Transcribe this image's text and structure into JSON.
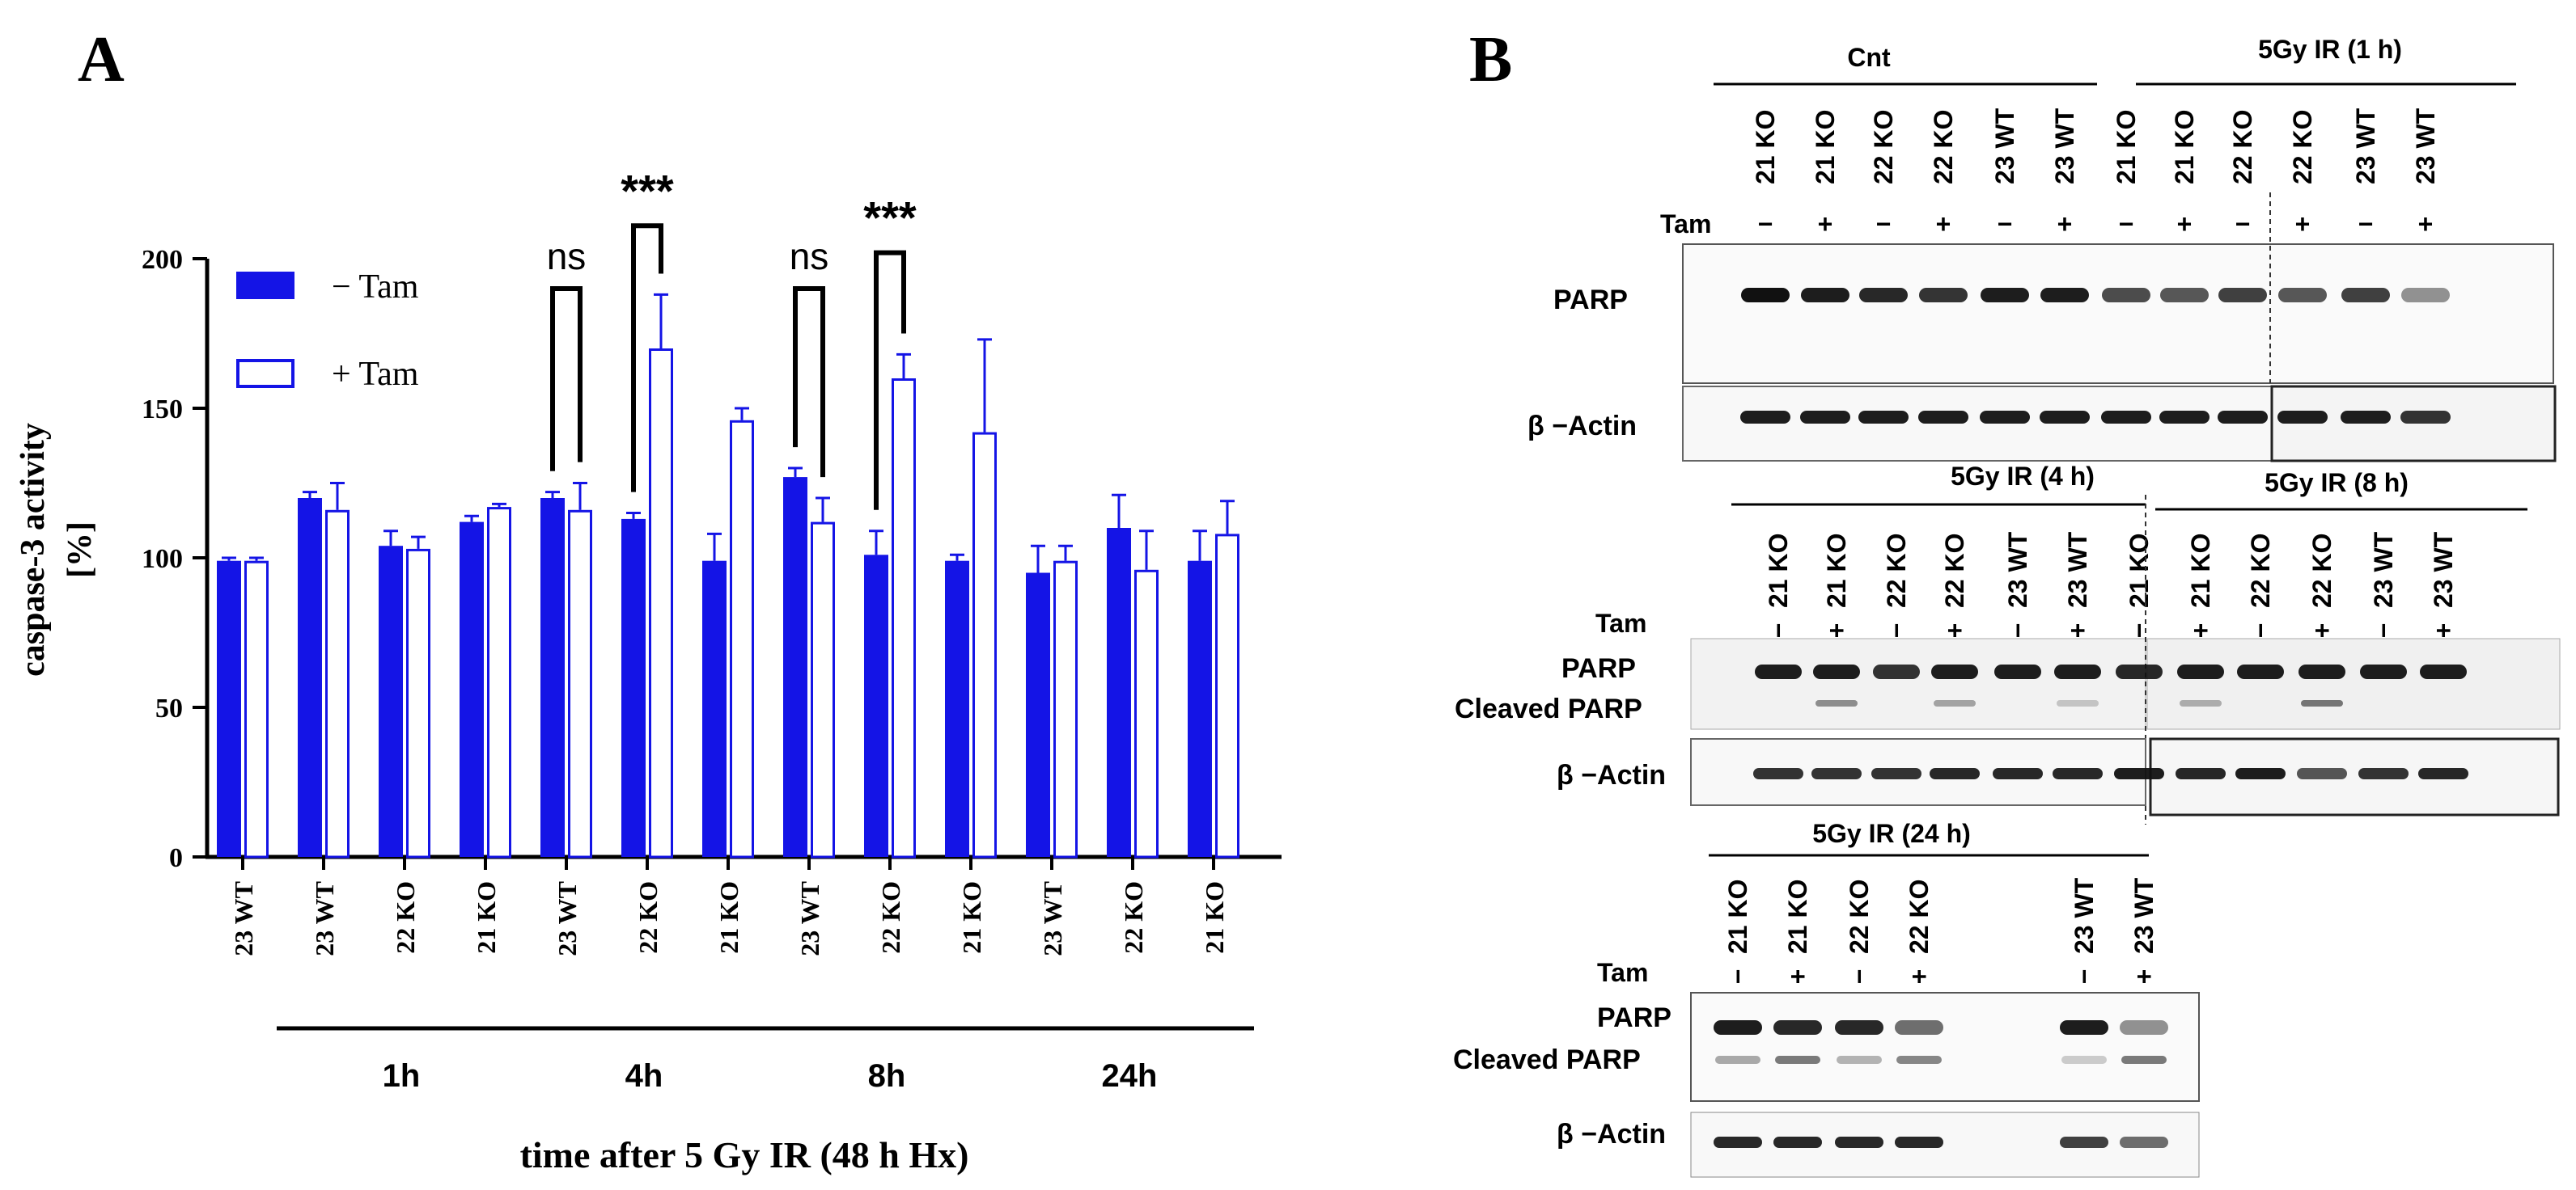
{
  "panel_a": {
    "label": "A",
    "chart_data": {
      "type": "bar",
      "ylabel_line1": "caspase-3 activity",
      "ylabel_line2": "[%]",
      "xlabel": "time after 5 Gy IR (48 h Hx)",
      "ylim": [
        0,
        200
      ],
      "yticks": [
        "0",
        "50",
        "100",
        "150",
        "200"
      ],
      "legend": [
        {
          "label": "− Tam",
          "fill": "solid"
        },
        {
          "label": "+ Tam",
          "fill": "open"
        }
      ],
      "categories": [
        "23 WT",
        "23 WT",
        "22 KO",
        "21 KO",
        "23 WT",
        "22 KO",
        "21 KO",
        "23 WT",
        "22 KO",
        "21 KO",
        "23 WT",
        "22 KO",
        "21 KO"
      ],
      "series": [
        {
          "name": "− Tam",
          "values": [
            99,
            120,
            104,
            112,
            120,
            113,
            99,
            127,
            101,
            99,
            95,
            110,
            99
          ],
          "errors": [
            1,
            2,
            5,
            2,
            2,
            2,
            9,
            3,
            8,
            2,
            9,
            11,
            10
          ]
        },
        {
          "name": "+ Tam",
          "values": [
            99,
            116,
            103,
            117,
            116,
            170,
            146,
            112,
            160,
            142,
            99,
            96,
            108
          ],
          "errors": [
            1,
            9,
            4,
            1,
            9,
            18,
            4,
            8,
            8,
            31,
            5,
            13,
            11
          ]
        }
      ],
      "groups": [
        {
          "label": "1h",
          "from": 1,
          "to": 3
        },
        {
          "label": "4h",
          "from": 4,
          "to": 6
        },
        {
          "label": "8h",
          "from": 7,
          "to": 9
        },
        {
          "label": "24h",
          "from": 10,
          "to": 12
        }
      ],
      "significance": [
        {
          "label": "ns",
          "from_index": 4,
          "from_series": 0,
          "to_index": 4,
          "to_series": 1,
          "level": 190
        },
        {
          "label": "***",
          "from_index": 5,
          "from_series": 0,
          "to_index": 5,
          "to_series": 1,
          "level": 211
        },
        {
          "label": "ns",
          "from_index": 7,
          "from_series": 0,
          "to_index": 7,
          "to_series": 1,
          "level": 190
        },
        {
          "label": "***",
          "from_index": 8,
          "from_series": 0,
          "to_index": 8,
          "to_series": 1,
          "level": 202
        }
      ],
      "color": "#1414e6"
    }
  },
  "panel_b": {
    "label": "B",
    "tam_label": "Tam",
    "parp_label": "PARP",
    "cleaved_label": "Cleaved PARP",
    "actin_label": "β −Actin",
    "blot1": {
      "header_cnt": "Cnt",
      "header_ir": "5Gy IR (1 h)",
      "lanes": [
        "21 KO",
        "21 KO",
        "22 KO",
        "22 KO",
        "23 WT",
        "23 WT",
        "21 KO",
        "21 KO",
        "22 KO",
        "22 KO",
        "23 WT",
        "23 WT"
      ],
      "tam": [
        "−",
        "+",
        "−",
        "+",
        "−",
        "+",
        "−",
        "+",
        "−",
        "+",
        "−",
        "+"
      ]
    },
    "blot2": {
      "header_a": "5Gy IR (4 h)",
      "header_b": "5Gy IR (8 h)",
      "lanes": [
        "21 KO",
        "21 KO",
        "22 KO",
        "22 KO",
        "23 WT",
        "23 WT",
        "21 KO",
        "21 KO",
        "22 KO",
        "22 KO",
        "23 WT",
        "23 WT"
      ],
      "tam": [
        "−",
        "+",
        "−",
        "+",
        "−",
        "+",
        "−",
        "+",
        "−",
        "+",
        "−",
        "+"
      ]
    },
    "blot3": {
      "header": "5Gy IR (24 h)",
      "lanes": [
        "21 KO",
        "21 KO",
        "22 KO",
        "22 KO",
        "23 WT",
        "23 WT"
      ],
      "tam": [
        "−",
        "+",
        "−",
        "+",
        "−",
        "+"
      ]
    }
  }
}
